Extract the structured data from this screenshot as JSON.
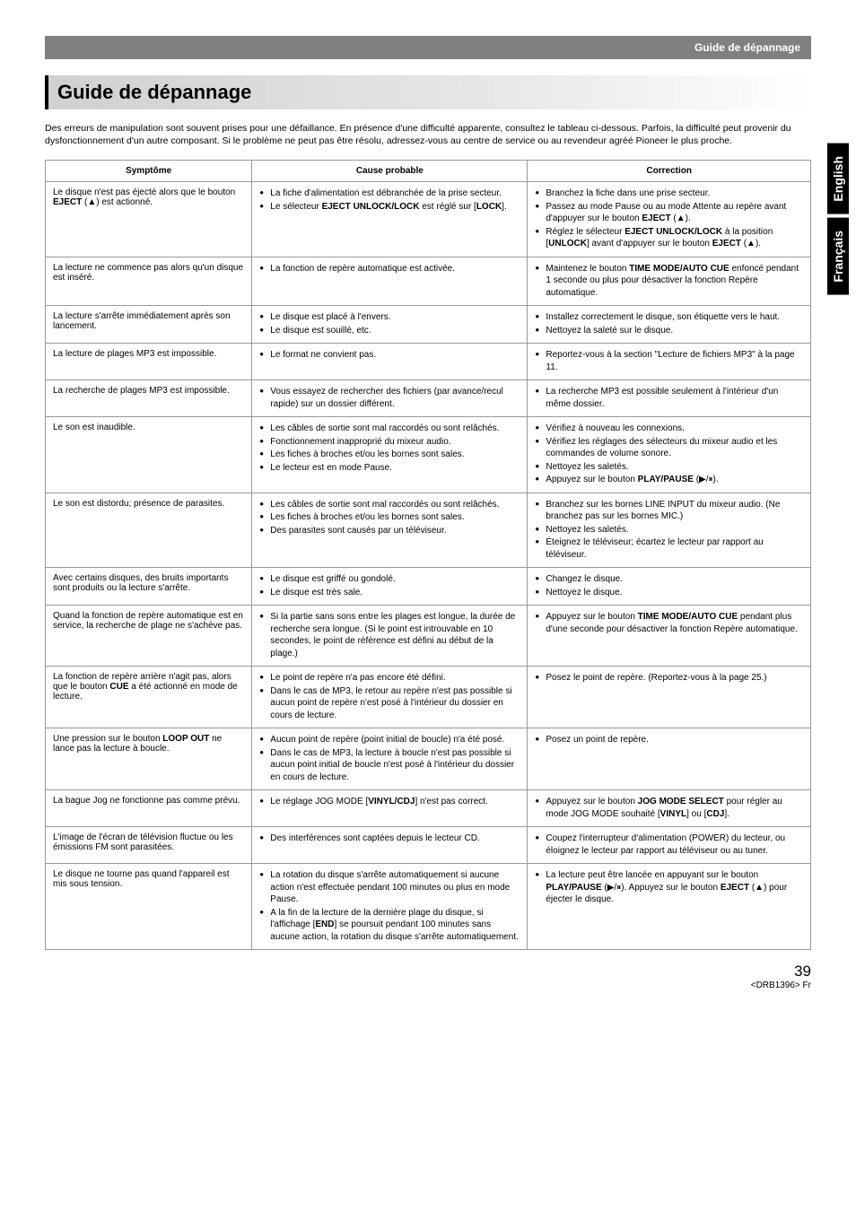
{
  "header": {
    "section_title": "Guide de dépannage"
  },
  "title": "Guide de dépannage",
  "intro": "Des erreurs de manipulation sont souvent prises pour une défaillance. En présence d'une difficulté apparente, consultez le tableau ci-dessous. Parfois, la difficulté peut provenir du dysfonctionnement d'un autre composant. Si le problème ne peut pas être résolu, adressez-vous au centre de service ou au revendeur agréé Pioneer le plus proche.",
  "tabs": {
    "en": "English",
    "fr": "Français"
  },
  "columns": {
    "c1": "Symptôme",
    "c2": "Cause probable",
    "c3": "Correction"
  },
  "rows": [
    {
      "symptom": "Le disque n'est pas éjecté alors que le bouton <b>EJECT</b> (▲) est actionné.",
      "cause": [
        "La fiche d'alimentation est débranchée de la prise secteur.",
        "Le sélecteur <b>EJECT UNLOCK/LOCK</b> est réglé sur [<b>LOCK</b>]."
      ],
      "correction": [
        "Branchez la fiche dans une prise secteur.",
        "Passez au mode Pause ou au mode Attente au repère avant d'appuyer sur le bouton <b>EJECT</b> (▲).",
        "Réglez le sélecteur <b>EJECT UNLOCK/LOCK</b> à la position [<b>UNLOCK</b>] avant d'appuyer sur le bouton <b>EJECT</b> (▲)."
      ]
    },
    {
      "symptom": "La lecture ne commence pas alors qu'un disque est inséré.",
      "cause": [
        "La fonction de repère automatique est activée."
      ],
      "correction": [
        "Maintenez le bouton <b>TIME MODE/AUTO CUE</b> enfoncé pendant 1 seconde ou plus pour désactiver la fonction Repère automatique."
      ]
    },
    {
      "symptom": "La lecture s'arrête immédiatement après son lancement.",
      "cause": [
        "Le disque est placé à l'envers.",
        "Le disque est souillé, etc."
      ],
      "correction": [
        "Installez correctement le disque, son étiquette vers le haut.",
        "Nettoyez la saleté sur le disque."
      ]
    },
    {
      "symptom": "La lecture de plages MP3 est impossible.",
      "cause": [
        "Le format ne convient pas."
      ],
      "correction": [
        "Reportez-vous à la section \"Lecture de fichiers MP3\" à la page 11."
      ]
    },
    {
      "symptom": "La recherche de plages MP3 est impossible.",
      "cause": [
        "Vous essayez de rechercher des fichiers (par avance/recul rapide) sur un dossier différent."
      ],
      "correction": [
        "La recherche MP3 est possible seulement à l'intérieur d'un même dossier."
      ]
    },
    {
      "symptom": "Le son est inaudible.",
      "cause": [
        "Les câbles de sortie sont mal raccordés ou sont relâchés.",
        "Fonctionnement inapproprié du mixeur audio.",
        "Les fiches à broches et/ou les bornes sont sales.",
        "Le lecteur est en mode Pause."
      ],
      "correction": [
        "Vérifiez à nouveau les connexions.",
        "Vérifiez les réglages des sélecteurs du mixeur audio et les commandes de volume sonore.",
        "Nettoyez les saletés.",
        "Appuyez sur le bouton <b>PLAY/PAUSE</b> (▶/⏸)."
      ]
    },
    {
      "symptom": "Le son est distordu; présence de parasites.",
      "cause": [
        "Les câbles de sortie sont mal raccordés ou sont relâchés.",
        "Les fiches à broches et/ou les bornes sont sales.",
        "Des parasites sont causés par un téléviseur."
      ],
      "correction": [
        "Branchez sur les bornes LINE INPUT du mixeur audio. (Ne branchez pas sur les bornes MIC.)",
        "Nettoyez les saletés.",
        "Éteignez le téléviseur; écartez le lecteur par rapport au téléviseur."
      ]
    },
    {
      "symptom": "Avec certains disques, des bruits importants sont produits ou la lecture s'arrête.",
      "cause": [
        "Le disque est griffé ou gondolé.",
        "Le disque est très sale."
      ],
      "correction": [
        "Changez le disque.",
        "Nettoyez le disque."
      ]
    },
    {
      "symptom": "Quand la fonction de repère automatique est en service, la recherche de plage ne s'achève pas.",
      "cause": [
        "Si la partie sans sons entre les plages est longue, la durée de recherche sera longue. (Si le point est introuvable en 10 secondes, le point de référence est défini au début de la plage.)"
      ],
      "correction": [
        "Appuyez sur le bouton <b>TIME MODE/AUTO CUE</b> pendant plus d'une seconde pour désactiver la fonction Repère automatique."
      ]
    },
    {
      "symptom": "La fonction de repère arrière n'agit pas, alors que le bouton <b>CUE</b> a été actionné en mode de lecture.",
      "cause": [
        "Le point de repère n'a pas encore été défini.",
        "Dans le cas de MP3, le retour au repère n'est pas possible si aucun point de repère n'est posé à l'intérieur du dossier en cours de lecture."
      ],
      "correction": [
        "Posez le point de repère. (Reportez-vous à la page 25.)"
      ]
    },
    {
      "symptom": "Une pression sur le bouton <b>LOOP OUT</b> ne lance pas la lecture à boucle.",
      "cause": [
        "Aucun point de repère (point initial de boucle) n'a été posé.",
        "Dans le cas de MP3, la lecture à boucle n'est pas possible si aucun point initial de boucle n'est posé à l'intérieur du dossier en cours de lecture."
      ],
      "correction": [
        "Posez un point de repère."
      ]
    },
    {
      "symptom": "La bague Jog ne fonctionne pas comme prévu.",
      "cause": [
        "Le réglage JOG MODE [<b>VINYL/CDJ</b>] n'est pas correct."
      ],
      "correction": [
        "Appuyez sur le bouton <b>JOG MODE SELECT</b> pour régler au mode JOG MODE souhaité [<b>VINYL</b>] ou [<b>CDJ</b>]."
      ]
    },
    {
      "symptom": "L'image de l'écran de télévision fluctue ou les émissions FM sont parasitées.",
      "cause": [
        "Des interférences sont captées depuis le lecteur CD."
      ],
      "correction": [
        "Coupez l'interrupteur d'alimentation (POWER) du lecteur, ou éloignez le lecteur par rapport au téléviseur ou au tuner."
      ]
    },
    {
      "symptom": "Le disque ne tourne pas quand l'appareil est mis sous tension.",
      "cause": [
        "La rotation du disque s'arrête automatiquement si aucune action n'est effectuée pendant 100 minutes ou plus en mode Pause.",
        "A la fin de la lecture de la dernière plage du disque, si l'affichage [<b>END</b>] se poursuit pendant 100 minutes sans aucune action, la rotation du disque s'arrête automatiquement."
      ],
      "correction": [
        "La lecture peut être lancée en appuyant sur le bouton <b>PLAY/PAUSE</b> (▶/⏸). Appuyez sur le bouton <b>EJECT</b> (▲) pour éjecter le disque."
      ]
    }
  ],
  "footer": {
    "page_number": "39",
    "doc_ref": "<DRB1396> Fr"
  },
  "colors": {
    "header_bg": "#808080",
    "border": "#999999",
    "text": "#000000"
  }
}
